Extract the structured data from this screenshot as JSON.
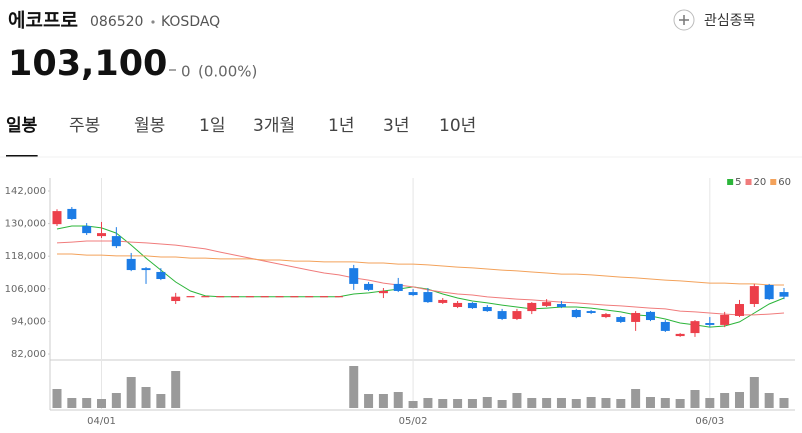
{
  "header": {
    "name": "에코프로",
    "code": "086520",
    "market": "KOSDAQ",
    "watchlist": "관심종목",
    "price": "103,100",
    "change": "0",
    "change_pct": "(0.00%)"
  },
  "tabs": [
    "일봉",
    "주봉",
    "월봉",
    "1일",
    "3개월",
    "1년",
    "3년",
    "10년"
  ],
  "active_tab": 0,
  "chart_data": {
    "type": "candlestick",
    "categories": [
      null,
      null,
      null,
      "04/01",
      null,
      null,
      null,
      null,
      null,
      null,
      null,
      null,
      null,
      null,
      null,
      null,
      null,
      null,
      null,
      null,
      null,
      null,
      null,
      null,
      "05/02",
      null,
      null,
      null,
      null,
      null,
      null,
      null,
      null,
      null,
      null,
      null,
      null,
      null,
      null,
      null,
      null,
      null,
      null,
      null,
      "06/03",
      null,
      null,
      null,
      null,
      null
    ],
    "open": [
      129800,
      135400,
      129100,
      125400,
      125400,
      117000,
      113600,
      112200,
      101500,
      103100,
      103100,
      103100,
      103100,
      103100,
      103100,
      103100,
      103100,
      103100,
      103100,
      103100,
      113600,
      107800,
      104400,
      107800,
      104800,
      104800,
      100800,
      99300,
      100800,
      99300,
      97800,
      94900,
      97800,
      99700,
      100400,
      98200,
      97800,
      95600,
      95600,
      93800,
      97500,
      93800,
      88600,
      89700,
      93400,
      92700,
      96000,
      100400,
      107400,
      104800
    ],
    "high": [
      135300,
      136100,
      130200,
      130600,
      128700,
      119200,
      114000,
      113600,
      104500,
      103100,
      103100,
      103100,
      103100,
      103100,
      103100,
      103100,
      103100,
      103100,
      103100,
      103100,
      114800,
      108500,
      106300,
      110000,
      105900,
      106300,
      102600,
      101500,
      101100,
      100000,
      98600,
      98600,
      101100,
      102200,
      101500,
      98600,
      98200,
      97100,
      96000,
      97800,
      97800,
      94500,
      89700,
      94500,
      95600,
      97500,
      101900,
      107800,
      107800,
      106300
    ],
    "low": [
      129100,
      131300,
      125800,
      124700,
      121000,
      112500,
      107800,
      109200,
      100400,
      103100,
      103100,
      103100,
      103100,
      103100,
      103100,
      103100,
      103100,
      103100,
      103100,
      103100,
      105600,
      105200,
      102600,
      104800,
      103300,
      100800,
      100400,
      98900,
      98600,
      97500,
      94500,
      94500,
      96700,
      99300,
      98900,
      95200,
      96700,
      95200,
      93400,
      90500,
      94100,
      90100,
      88300,
      88300,
      91900,
      91900,
      95600,
      99300,
      101900,
      102200
    ],
    "close": [
      134600,
      131700,
      126500,
      126500,
      121700,
      112900,
      112900,
      109600,
      103100,
      103100,
      103100,
      103100,
      103100,
      103100,
      103100,
      103100,
      103100,
      103100,
      103100,
      103100,
      107800,
      105600,
      105200,
      105200,
      103700,
      101100,
      101900,
      100800,
      98900,
      97800,
      94900,
      97800,
      100800,
      101100,
      99300,
      95600,
      97100,
      96700,
      93800,
      97100,
      94500,
      90500,
      89400,
      94100,
      92700,
      96400,
      100400,
      107000,
      102200,
      103100
    ],
    "up_color": "#ec3f4a",
    "down_color": "#1c7ce5",
    "ylim": [
      82000,
      142000
    ],
    "yticks": [
      {
        "value": 82000,
        "label": "82,000"
      },
      {
        "value": 94000,
        "label": "94,000"
      },
      {
        "value": 106000,
        "label": "106,000"
      },
      {
        "value": 118000,
        "label": "118,000"
      },
      {
        "value": 130000,
        "label": "130,000"
      },
      {
        "value": 142000,
        "label": "142,000"
      }
    ],
    "moving_averages": [
      {
        "name": "5",
        "color": "#2cb53a",
        "values": [
          128000,
          129100,
          129100,
          128400,
          126500,
          122100,
          117300,
          112900,
          108500,
          105200,
          103400,
          103100,
          103100,
          103100,
          103100,
          103100,
          103100,
          103100,
          103100,
          103100,
          104100,
          104500,
          105200,
          105900,
          106700,
          105900,
          104100,
          102600,
          101500,
          100800,
          100000,
          99300,
          98600,
          98900,
          99300,
          99300,
          98900,
          98200,
          97500,
          96400,
          96000,
          94900,
          93400,
          92700,
          91900,
          92300,
          93800,
          97100,
          100400,
          102600
        ]
      },
      {
        "name": "20",
        "color": "#f07c7c",
        "values": [
          122900,
          123200,
          123600,
          123600,
          123600,
          123200,
          122900,
          122500,
          122100,
          121400,
          120700,
          119500,
          118400,
          117300,
          116200,
          115100,
          114000,
          112900,
          111800,
          111100,
          110000,
          109200,
          108100,
          107400,
          106700,
          105600,
          104800,
          104100,
          103700,
          103000,
          102600,
          102200,
          101900,
          101500,
          101100,
          100800,
          100400,
          100000,
          99700,
          99300,
          98900,
          98600,
          97800,
          97500,
          97100,
          96700,
          96400,
          96400,
          96700,
          97100
        ]
      },
      {
        "name": "60",
        "color": "#f3a25b",
        "values": [
          118800,
          118800,
          118400,
          118400,
          118100,
          118100,
          118100,
          117700,
          117700,
          117300,
          117300,
          117000,
          117000,
          117000,
          116600,
          116600,
          116200,
          116200,
          115900,
          115900,
          115900,
          115500,
          115500,
          115100,
          115100,
          114800,
          114400,
          114000,
          113700,
          113300,
          112900,
          112600,
          112200,
          111800,
          111400,
          111400,
          111100,
          110700,
          110300,
          110000,
          109600,
          109200,
          108900,
          108500,
          108100,
          108100,
          107800,
          107800,
          107400,
          107400
        ]
      }
    ],
    "legend": "top-right",
    "volume": {
      "color": "#9a9a9a",
      "ylim": [
        0,
        46
      ],
      "values": [
        19,
        10,
        10,
        9,
        15,
        31,
        21,
        14,
        37,
        0,
        0,
        0,
        0,
        0,
        0,
        0,
        0,
        0,
        0,
        0,
        42,
        14,
        14,
        16,
        7,
        10,
        9,
        9,
        9,
        11,
        8,
        15,
        10,
        10,
        10,
        9,
        11,
        10,
        9,
        19,
        11,
        10,
        9,
        18,
        10,
        15,
        16,
        31,
        15,
        10
      ]
    }
  }
}
